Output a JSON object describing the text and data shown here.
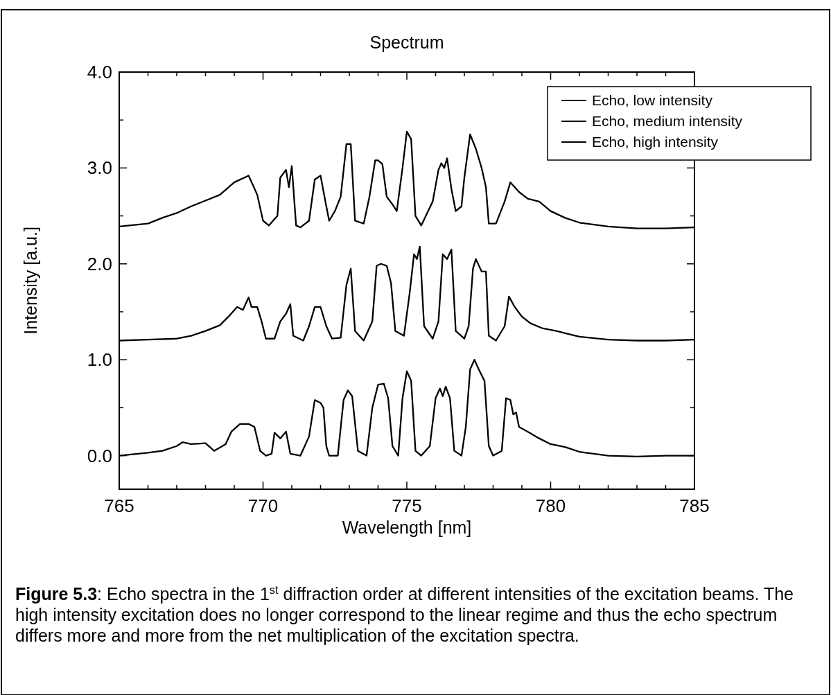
{
  "chart_data": {
    "type": "line",
    "title": "Spectrum",
    "xlabel": "Wavelength [nm]",
    "ylabel": "Intensity [a.u.]",
    "annotations": [
      "Figure 5.3: Echo spectra in the 1$^{st}$ diffraction order at different intensities of the excitation beams. The high intensity excitation does no longer correspond to the linear regime and thus the echo spectrum differs more and more from the net multiplication of the excitation spectra."
    ],
    "xlim": [
      765,
      785
    ],
    "ylim": [
      -0.35,
      4.0
    ],
    "xticks": [
      765,
      {
        "value": 766,
        "label": null
      },
      {
        "value": 767,
        "label": null
      },
      {
        "value": 768,
        "label": null
      },
      {
        "value": 769,
        "label": null
      },
      770,
      {
        "value": 771,
        "label": null
      },
      {
        "value": 772,
        "label": null
      },
      {
        "value": 773,
        "label": null
      },
      {
        "value": 774,
        "label": null
      },
      775,
      {
        "value": 776,
        "label": null
      },
      {
        "value": 777,
        "label": null
      },
      {
        "value": 778,
        "label": null
      },
      {
        "value": 779,
        "label": null
      },
      780,
      {
        "value": 781,
        "label": null
      },
      {
        "value": 782,
        "label": null
      },
      {
        "value": 783,
        "label": null
      },
      {
        "value": 784,
        "label": null
      },
      785
    ],
    "yticks": [
      {
        "value": 0,
        "label": "0.0"
      },
      {
        "value": 0.5,
        "label": null
      },
      {
        "value": 1,
        "label": "1.0"
      },
      {
        "value": 1.5,
        "label": null
      },
      {
        "value": 2,
        "label": "2.0"
      },
      {
        "value": 2.5,
        "label": null
      },
      {
        "value": 3,
        "label": "3.0"
      },
      {
        "value": 3.5,
        "label": null
      },
      {
        "value": 4,
        "label": "4.0"
      }
    ],
    "grid": false,
    "legend": "top right",
    "marker": "none",
    "line_style": "solid",
    "series": [
      {
        "name": "Echo, low intensity",
        "color": "#000000",
        "x": [
          765,
          766,
          766.5,
          767,
          767.2,
          767.5,
          768,
          768.3,
          768.7,
          768.9,
          769.2,
          769.5,
          769.7,
          769.9,
          770.1,
          770.3,
          770.4,
          770.6,
          770.8,
          770.95,
          771.3,
          771.6,
          771.8,
          772.0,
          772.1,
          772.2,
          772.3,
          772.6,
          772.8,
          772.95,
          773.1,
          773.3,
          773.6,
          773.8,
          774.0,
          774.2,
          774.35,
          774.5,
          774.7,
          774.85,
          775.0,
          775.15,
          775.3,
          775.5,
          775.8,
          776.0,
          776.15,
          776.25,
          776.35,
          776.5,
          776.65,
          776.9,
          777.05,
          777.2,
          777.35,
          777.5,
          777.7,
          777.85,
          778.0,
          778.3,
          778.45,
          778.6,
          778.7,
          778.8,
          778.9,
          779.2,
          779.6,
          780.0,
          780.5,
          781.0,
          781.5,
          782,
          783,
          784,
          785
        ],
        "values": [
          0.0,
          0.03,
          0.05,
          0.1,
          0.14,
          0.12,
          0.13,
          0.05,
          0.12,
          0.25,
          0.33,
          0.33,
          0.3,
          0.05,
          0.0,
          0.02,
          0.24,
          0.18,
          0.25,
          0.02,
          0.0,
          0.2,
          0.58,
          0.55,
          0.5,
          0.1,
          0.0,
          0.0,
          0.58,
          0.68,
          0.62,
          0.05,
          0.0,
          0.5,
          0.74,
          0.75,
          0.6,
          0.1,
          0.0,
          0.6,
          0.88,
          0.78,
          0.05,
          0.0,
          0.1,
          0.6,
          0.7,
          0.62,
          0.72,
          0.6,
          0.05,
          0.0,
          0.3,
          0.9,
          1.0,
          0.9,
          0.78,
          0.1,
          0.0,
          0.05,
          0.6,
          0.58,
          0.43,
          0.45,
          0.3,
          0.25,
          0.18,
          0.12,
          0.09,
          0.04,
          0.02,
          0.0,
          -0.01,
          0.0,
          0.0
        ]
      },
      {
        "name": "Echo, medium intensity",
        "color": "#000000",
        "x": [
          765,
          766,
          767,
          767.5,
          768,
          768.5,
          768.8,
          769.1,
          769.3,
          769.5,
          769.6,
          769.8,
          769.95,
          770.1,
          770.4,
          770.6,
          770.8,
          770.95,
          771.05,
          771.4,
          771.6,
          771.8,
          772.0,
          772.2,
          772.4,
          772.7,
          772.9,
          773.05,
          773.2,
          773.5,
          773.8,
          773.95,
          774.1,
          774.3,
          774.45,
          774.6,
          774.9,
          775.1,
          775.25,
          775.35,
          775.45,
          775.6,
          775.9,
          776.1,
          776.25,
          776.4,
          776.55,
          776.7,
          777.0,
          777.15,
          777.3,
          777.4,
          777.6,
          777.75,
          777.85,
          778.1,
          778.4,
          778.55,
          778.75,
          779.0,
          779.3,
          779.7,
          780.2,
          780.6,
          781.0,
          782,
          783,
          784,
          785
        ],
        "values": [
          1.2,
          1.21,
          1.22,
          1.25,
          1.3,
          1.36,
          1.45,
          1.55,
          1.52,
          1.65,
          1.55,
          1.55,
          1.4,
          1.22,
          1.22,
          1.4,
          1.48,
          1.58,
          1.25,
          1.2,
          1.35,
          1.55,
          1.55,
          1.35,
          1.22,
          1.23,
          1.78,
          1.95,
          1.3,
          1.2,
          1.4,
          1.98,
          2.0,
          1.98,
          1.8,
          1.3,
          1.25,
          1.7,
          2.1,
          2.05,
          2.18,
          1.35,
          1.22,
          1.4,
          2.1,
          2.05,
          2.15,
          1.3,
          1.22,
          1.35,
          1.95,
          2.05,
          1.92,
          1.92,
          1.25,
          1.2,
          1.35,
          1.66,
          1.55,
          1.45,
          1.38,
          1.33,
          1.3,
          1.27,
          1.24,
          1.21,
          1.2,
          1.2,
          1.21
        ]
      },
      {
        "name": "Echo, high intensity",
        "color": "#000000",
        "x": [
          765,
          766,
          766.5,
          767,
          767.5,
          768,
          768.5,
          769,
          769.5,
          769.8,
          770.0,
          770.2,
          770.5,
          770.6,
          770.8,
          770.9,
          771.0,
          771.15,
          771.3,
          771.6,
          771.8,
          772.0,
          772.2,
          772.3,
          772.5,
          772.7,
          772.9,
          773.05,
          773.2,
          773.5,
          773.7,
          773.9,
          774.0,
          774.15,
          774.3,
          774.5,
          774.65,
          774.85,
          775.0,
          775.15,
          775.3,
          775.5,
          775.9,
          776.1,
          776.2,
          776.3,
          776.4,
          776.55,
          776.7,
          776.9,
          777.0,
          777.2,
          777.4,
          777.6,
          777.75,
          777.85,
          778.1,
          778.4,
          778.6,
          778.9,
          779.2,
          779.6,
          780.0,
          780.5,
          781,
          782,
          783,
          784,
          785
        ],
        "values": [
          2.39,
          2.42,
          2.48,
          2.53,
          2.6,
          2.66,
          2.72,
          2.85,
          2.92,
          2.72,
          2.45,
          2.4,
          2.5,
          2.9,
          2.98,
          2.8,
          3.02,
          2.4,
          2.38,
          2.45,
          2.88,
          2.92,
          2.6,
          2.45,
          2.55,
          2.7,
          3.25,
          3.25,
          2.45,
          2.42,
          2.7,
          3.08,
          3.08,
          3.04,
          2.7,
          2.62,
          2.55,
          3.0,
          3.38,
          3.3,
          2.5,
          2.4,
          2.65,
          2.98,
          3.05,
          3.0,
          3.1,
          2.78,
          2.55,
          2.6,
          2.9,
          3.35,
          3.2,
          3.0,
          2.8,
          2.42,
          2.42,
          2.65,
          2.85,
          2.75,
          2.68,
          2.65,
          2.55,
          2.48,
          2.43,
          2.39,
          2.37,
          2.37,
          2.38
        ]
      }
    ]
  }
}
